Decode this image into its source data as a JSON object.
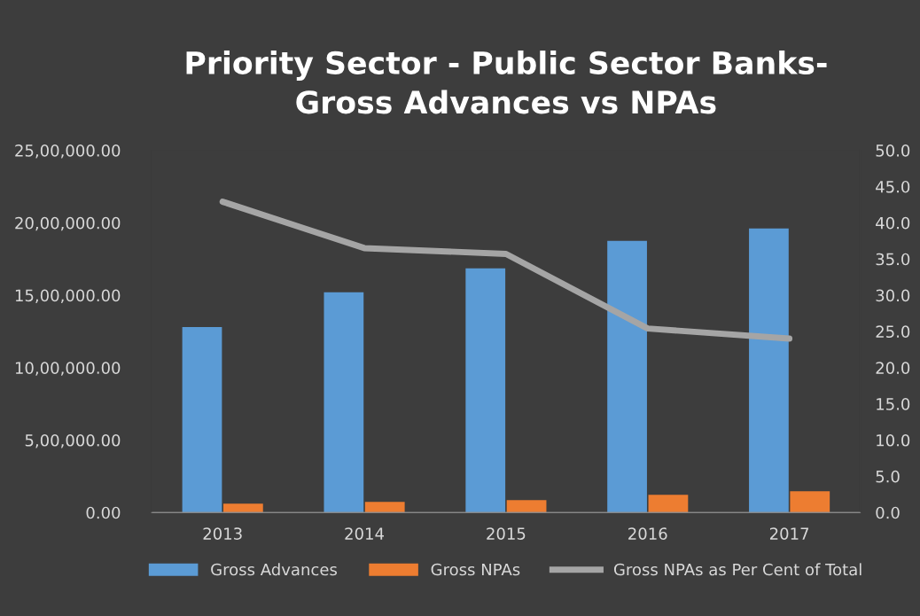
{
  "chart_data": {
    "type": "bar",
    "title": "Priority Sector - Public Sector Banks-\nGross Advances vs NPAs",
    "categories": [
      "2013",
      "2014",
      "2015",
      "2016",
      "2017"
    ],
    "series": [
      {
        "name": "Gross Advances",
        "color": "#5b9bd5",
        "values": [
          1280000,
          1520000,
          1685000,
          1875000,
          1960000
        ]
      },
      {
        "name": "Gross NPAs",
        "color": "#ed7d31",
        "values": [
          61000,
          73000,
          86000,
          122000,
          147000
        ]
      },
      {
        "name": "Gross NPAs as Per Cent of Total",
        "type": "line",
        "axis": "y2",
        "color": "#a5a5a5",
        "values": [
          42.9,
          36.5,
          35.7,
          25.4,
          24.0
        ]
      }
    ],
    "ylim": [
      0,
      2500000
    ],
    "yticks": [
      {
        "value": 0,
        "label": "0.00"
      },
      {
        "value": 500000,
        "label": "5,00,000.00"
      },
      {
        "value": 1000000,
        "label": "10,00,000.00"
      },
      {
        "value": 1500000,
        "label": "15,00,000.00"
      },
      {
        "value": 2000000,
        "label": "20,00,000.00"
      },
      {
        "value": 2500000,
        "label": "25,00,000.00"
      }
    ],
    "y2lim": [
      0,
      50
    ],
    "y2ticks": [
      {
        "value": 0,
        "label": "0.0"
      },
      {
        "value": 5,
        "label": "5.0"
      },
      {
        "value": 10,
        "label": "10.0"
      },
      {
        "value": 15,
        "label": "15.0"
      },
      {
        "value": 20,
        "label": "20.0"
      },
      {
        "value": 25,
        "label": "25.0"
      },
      {
        "value": 30,
        "label": "30.0"
      },
      {
        "value": 35,
        "label": "35.0"
      },
      {
        "value": 40,
        "label": "40.0"
      },
      {
        "value": 45,
        "label": "45.0"
      },
      {
        "value": 50,
        "label": "50.0"
      }
    ],
    "grid": false,
    "legend": "bottom",
    "marker": "none",
    "line_style": "solid"
  }
}
